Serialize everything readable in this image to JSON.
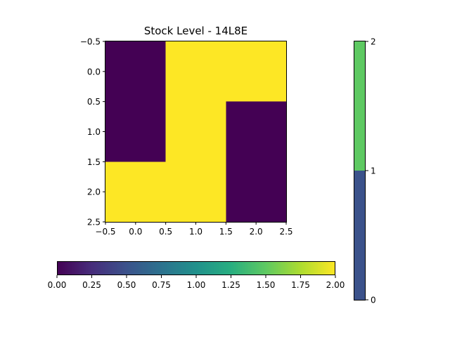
{
  "chart_data": {
    "type": "heatmap",
    "title": "Stock Level - 14L8E",
    "xlabel": "",
    "ylabel": "",
    "xlim": [
      -0.5,
      2.5
    ],
    "ylim": [
      2.5,
      -0.5
    ],
    "xticks": [
      "−0.5",
      "0.0",
      "0.5",
      "1.0",
      "1.5",
      "2.0",
      "2.5"
    ],
    "yticks": [
      "−0.5",
      "0.0",
      "0.5",
      "1.0",
      "1.5",
      "2.0",
      "2.5"
    ],
    "grid": false,
    "values": [
      [
        0,
        2,
        2
      ],
      [
        0,
        2,
        0
      ],
      [
        2,
        2,
        0
      ]
    ],
    "colormap": "viridis",
    "colors": {
      "low": "#440154",
      "high": "#fde725"
    },
    "colorbars": [
      {
        "orientation": "horizontal",
        "placement": "bottom",
        "range": [
          0,
          2
        ],
        "ticks": [
          "0.00",
          "0.25",
          "0.50",
          "0.75",
          "1.00",
          "1.25",
          "1.50",
          "1.75",
          "2.00"
        ]
      },
      {
        "orientation": "vertical",
        "placement": "right",
        "range": [
          0,
          2
        ],
        "ticks": [
          "0",
          "1",
          "2"
        ],
        "segments": [
          {
            "from": 0,
            "to": 1,
            "color": "#3b528b"
          },
          {
            "from": 1,
            "to": 2,
            "color": "#5ec962"
          }
        ]
      }
    ]
  }
}
